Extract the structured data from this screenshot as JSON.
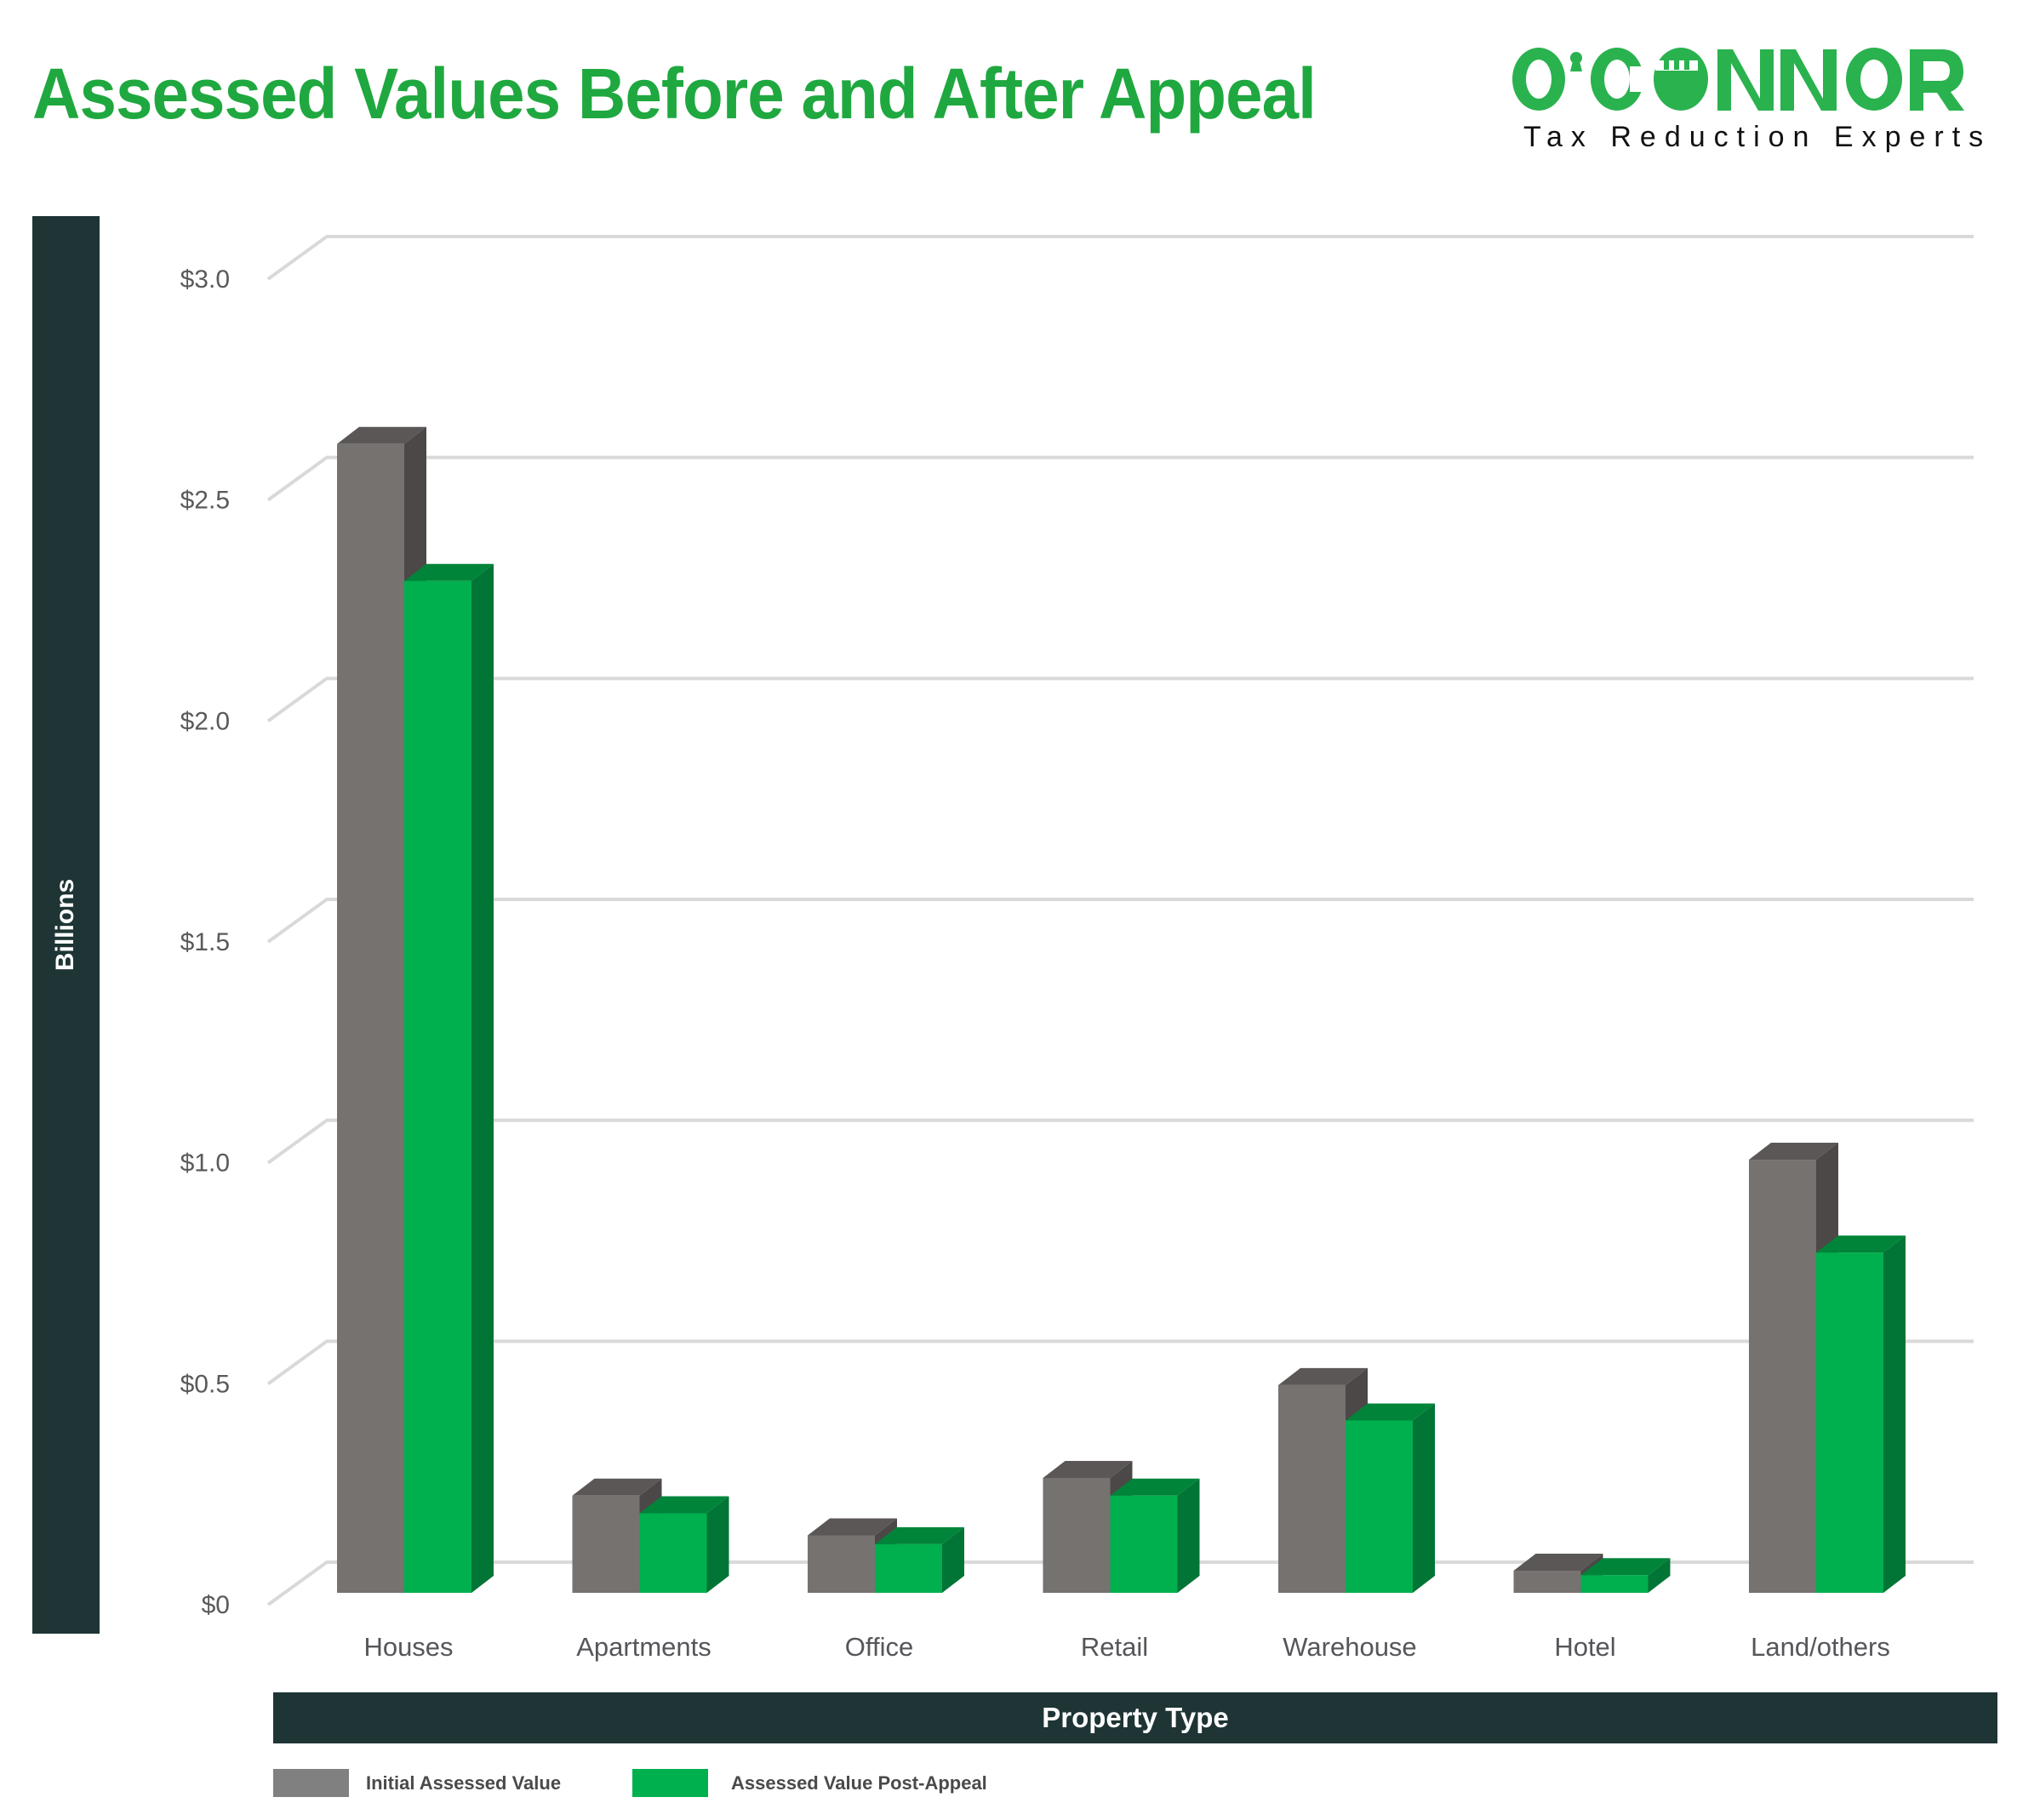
{
  "header": {
    "title": "Assessed Values Before and After Appeal"
  },
  "logo": {
    "brand": "O'CONNOR",
    "tagline": "Tax Reduction Experts",
    "color": "#2ab24f"
  },
  "colors": {
    "title": "#1fa83f",
    "axis_bar": "#1e3435",
    "initial_front": "#767270",
    "initial_top": "#5b5756",
    "initial_side": "#4c4847",
    "post_front": "#00af4e",
    "post_top": "#00843a",
    "post_side": "#007535",
    "gridline": "#d9d9d9",
    "legend_initial": "#808080",
    "legend_post": "#00b04f"
  },
  "chart_data": {
    "type": "bar",
    "style": "3d-clustered-column",
    "title": "Assessed Values Before and After Appeal",
    "xlabel": "Property Type",
    "ylabel": "Billions",
    "ylim": [
      0,
      3.0
    ],
    "yticks": [
      0,
      0.5,
      1.0,
      1.5,
      2.0,
      2.5,
      3.0
    ],
    "ytick_labels": [
      "$0",
      "$0.5",
      "$1.0",
      "$1.5",
      "$2.0",
      "$2.5",
      "$3.0"
    ],
    "grid": true,
    "legend_position": "bottom-left",
    "categories": [
      "Houses",
      "Apartments",
      "Office",
      "Retail",
      "Warehouse",
      "Hotel",
      "Land/others"
    ],
    "series": [
      {
        "name": "Initial Assessed Value",
        "values": [
          2.6,
          0.22,
          0.13,
          0.26,
          0.47,
          0.05,
          0.98
        ]
      },
      {
        "name": "Assessed Value Post-Appeal",
        "values": [
          2.29,
          0.18,
          0.11,
          0.22,
          0.39,
          0.04,
          0.77
        ]
      }
    ]
  }
}
